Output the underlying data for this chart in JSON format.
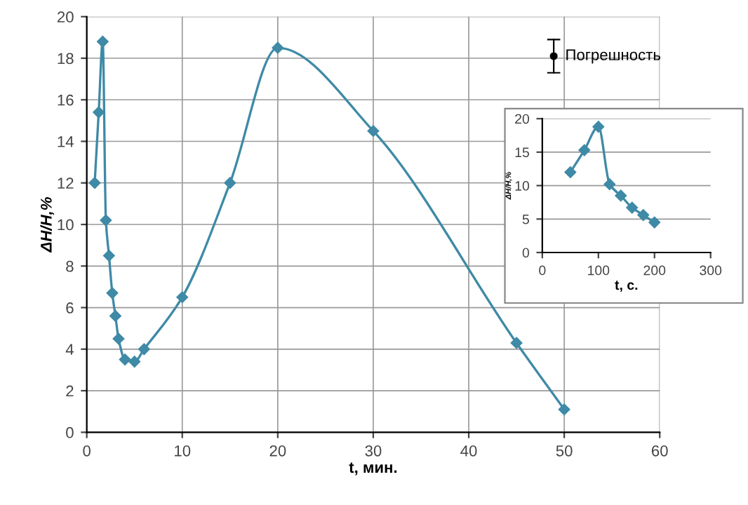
{
  "chart_data": [
    {
      "type": "line",
      "xlabel": "t, мин.",
      "ylabel": "ΔH/H,%",
      "xlim": [
        0,
        60
      ],
      "ylim": [
        0,
        20
      ],
      "xticks": [
        0,
        10,
        20,
        30,
        40,
        50,
        60
      ],
      "yticks": [
        0,
        2,
        4,
        6,
        8,
        10,
        12,
        14,
        16,
        18,
        20
      ],
      "grid": true,
      "annotations": [
        "Погрешность"
      ],
      "marker": "diamond",
      "line_style": "solid",
      "series": [
        {
          "color": "#3f8aa6",
          "x": [
            0.83,
            1.25,
            1.67,
            2,
            2.33,
            2.67,
            3,
            3.33,
            4,
            5,
            6,
            10,
            15,
            20,
            30,
            45,
            50
          ],
          "values": [
            12,
            15.4,
            18.8,
            10.2,
            8.5,
            6.7,
            5.6,
            4.5,
            3.5,
            3.4,
            4.0,
            6.5,
            12,
            18.5,
            14.5,
            4.3,
            1.1
          ]
        }
      ]
    },
    {
      "type": "line",
      "xlabel": "t, c.",
      "ylabel": "ΔH/H,%",
      "xlim": [
        0,
        300
      ],
      "ylim": [
        0,
        20
      ],
      "xticks": [
        0,
        100,
        200,
        300
      ],
      "yticks": [
        0,
        5,
        10,
        15,
        20
      ],
      "grid": "y",
      "marker": "diamond",
      "line_style": "solid",
      "series": [
        {
          "color": "#3f8aa6",
          "x": [
            50,
            75,
            100,
            120,
            140,
            160,
            180,
            200
          ],
          "values": [
            12,
            15.3,
            18.8,
            10.2,
            8.5,
            6.7,
            5.6,
            4.5
          ]
        }
      ]
    }
  ]
}
